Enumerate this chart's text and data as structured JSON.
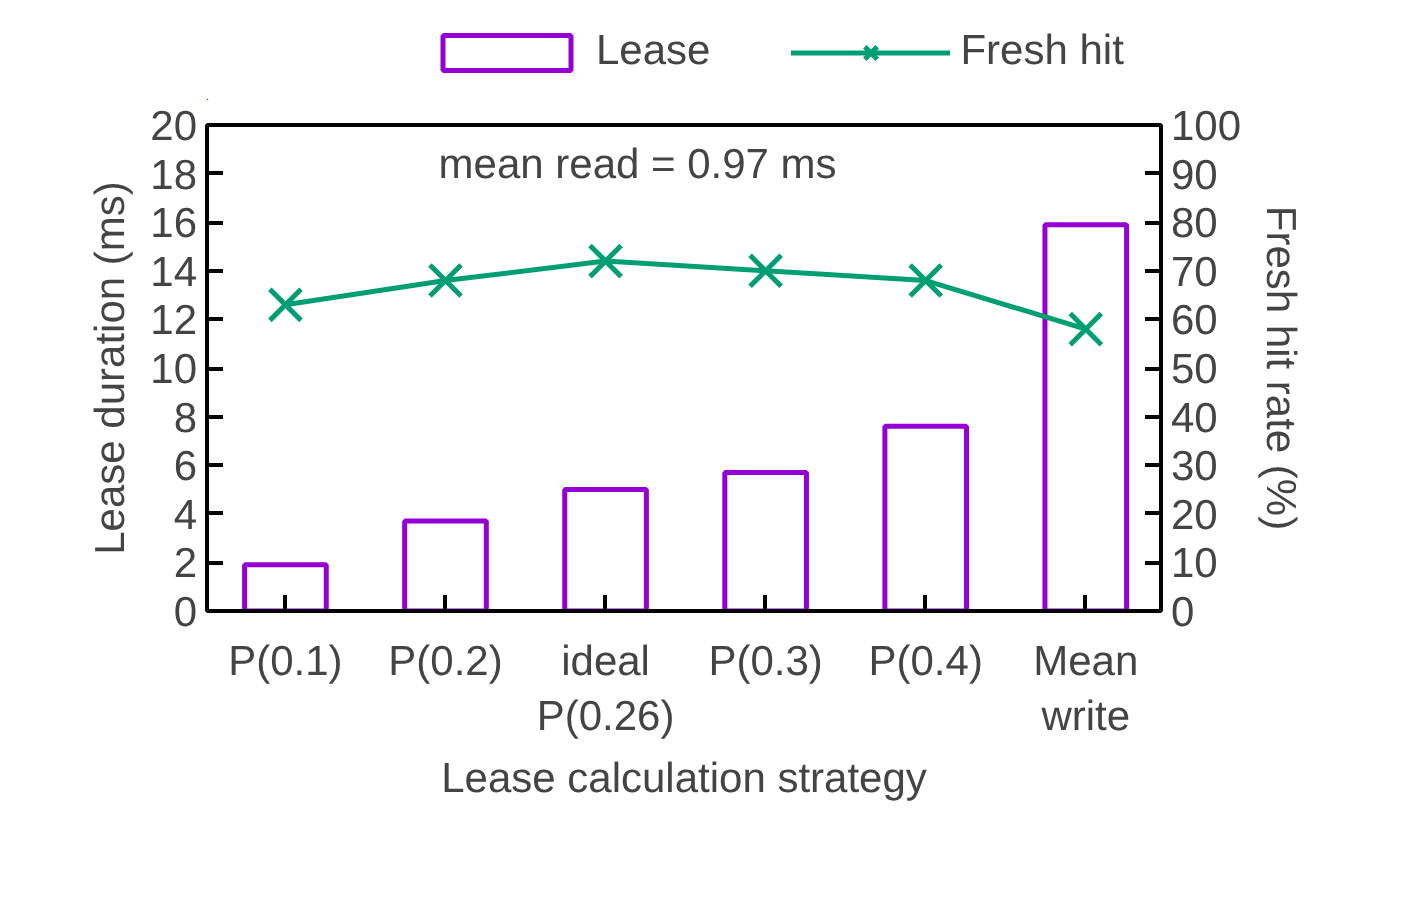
{
  "chart_data": {
    "type": "bar",
    "categories": [
      "P(0.1)",
      "P(0.2)",
      "ideal\nP(0.26)",
      "P(0.3)",
      "P(0.4)",
      "Mean\nwrite"
    ],
    "xlabel": "Lease calculation strategy",
    "ylabel": "Lease duration (ms)",
    "y2label": "Fresh hit rate (%)",
    "ylim": [
      0,
      20
    ],
    "yticks": [
      0,
      2,
      4,
      6,
      8,
      10,
      12,
      14,
      16,
      18,
      20
    ],
    "y2lim": [
      0,
      100
    ],
    "y2ticks": [
      0,
      10,
      20,
      30,
      40,
      50,
      60,
      70,
      80,
      90,
      100
    ],
    "annotations": [
      "mean read = 0.97 ms"
    ],
    "legend": "top",
    "grid": false,
    "series": [
      {
        "name": "Lease",
        "color": "#9400d3",
        "values": [
          1.9,
          3.7,
          5.0,
          5.7,
          7.6,
          15.9
        ]
      },
      {
        "name": "Fresh hit",
        "type": "line",
        "axis": "y2",
        "marker": "cross",
        "color": "#009e73",
        "values": [
          63,
          68,
          72,
          70,
          68,
          58
        ]
      }
    ]
  }
}
